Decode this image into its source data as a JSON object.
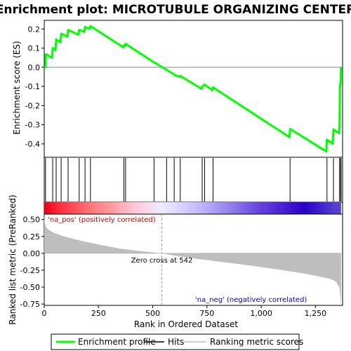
{
  "chart_data": {
    "type": "line",
    "title": "Enrichment plot: MICROTUBULE ORGANIZING CENTER",
    "es_panel": {
      "ylabel": "Enrichment score (ES)",
      "ylim": [
        -0.47,
        0.245
      ],
      "yticks": [
        0.2,
        0.1,
        0.0,
        -0.1,
        -0.2,
        -0.3,
        -0.4
      ],
      "ytick_labels": [
        "0.2",
        "0.1",
        "0.0",
        "-0.1",
        "-0.2",
        "-0.3",
        "-0.4"
      ],
      "series": [
        {
          "name": "Enrichment profile",
          "color": "#00ff00",
          "x": [
            0,
            6,
            7,
            36,
            39,
            52,
            55,
            75,
            78,
            107,
            110,
            158,
            161,
            185,
            188,
            210,
            213,
            364,
            367,
            372,
            375,
            500,
            596,
            599,
            624,
            627,
            725,
            728,
            736,
            739,
            775,
            778,
            1130,
            1133,
            1300,
            1303,
            1330,
            1333,
            1358,
            1361,
            1363,
            1366,
            1368
          ],
          "y": [
            0.0,
            0.0,
            0.068,
            0.05,
            0.1,
            0.09,
            0.145,
            0.13,
            0.175,
            0.16,
            0.195,
            0.17,
            0.195,
            0.185,
            0.21,
            0.2,
            0.215,
            0.105,
            0.115,
            0.11,
            0.122,
            0.03,
            -0.035,
            -0.04,
            -0.05,
            -0.045,
            -0.113,
            -0.1,
            -0.095,
            -0.09,
            -0.12,
            -0.105,
            -0.365,
            -0.322,
            -0.44,
            -0.378,
            -0.4,
            -0.325,
            -0.345,
            -0.31,
            -0.09,
            -0.09,
            0.0
          ]
        }
      ],
      "hits": [
        6,
        39,
        55,
        78,
        110,
        161,
        188,
        213,
        367,
        375,
        506,
        564,
        599,
        627,
        728,
        739,
        778,
        1133,
        1303,
        1333,
        1361,
        1366,
        1368
      ],
      "hits_color": "#000000"
    },
    "rank_panel": {
      "xlabel": "Rank in Ordered Dataset",
      "ylabel": "Ranked list metric (PreRanked)",
      "xlim": [
        0,
        1375
      ],
      "xticks": [
        0,
        250,
        500,
        750,
        1000,
        1250
      ],
      "xtick_labels": [
        "0",
        "250",
        "500",
        "750",
        "1,000",
        "1,250"
      ],
      "ylim": [
        -0.77,
        0.58
      ],
      "yticks": [
        0.5,
        0.25,
        0.0,
        -0.25,
        -0.5,
        -0.75
      ],
      "ytick_labels": [
        "0.50",
        "0.25",
        "0.00",
        "-0.25",
        "-0.50",
        "-0.75"
      ],
      "profile_x": [
        0,
        2,
        5,
        10,
        20,
        40,
        80,
        150,
        250,
        350,
        450,
        542,
        650,
        800,
        950,
        1100,
        1200,
        1280,
        1320,
        1345,
        1360,
        1368
      ],
      "profile_y": [
        0.58,
        0.47,
        0.43,
        0.38,
        0.35,
        0.31,
        0.26,
        0.2,
        0.13,
        0.07,
        0.03,
        0.0,
        -0.06,
        -0.12,
        -0.18,
        -0.25,
        -0.3,
        -0.35,
        -0.38,
        -0.42,
        -0.5,
        -0.75
      ],
      "fill_color": "#bebebe",
      "zero_cross_rank": 542,
      "annotations": {
        "zero_cross": "Zero cross at 542",
        "positive": "'na_pos' (positively correlated)",
        "negative": "'na_neg' (negatively correlated)"
      }
    },
    "color_bar": {
      "stops": [
        {
          "rank": 0,
          "color": "#e8001a"
        },
        {
          "rank": 80,
          "color": "#ff3344"
        },
        {
          "rank": 160,
          "color": "#ff5a63"
        },
        {
          "rank": 235,
          "color": "#ff7f85"
        },
        {
          "rank": 320,
          "color": "#ff9fa2"
        },
        {
          "rank": 420,
          "color": "#ffc8dc"
        },
        {
          "rank": 540,
          "color": "#f0eaff"
        },
        {
          "rank": 610,
          "color": "#ddd8ff"
        },
        {
          "rank": 700,
          "color": "#c8bdfa"
        },
        {
          "rank": 835,
          "color": "#9a88ee"
        },
        {
          "rank": 980,
          "color": "#6a48e0"
        },
        {
          "rank": 1200,
          "color": "#2a00c8"
        },
        {
          "rank": 1340,
          "color": "#5540d0"
        },
        {
          "rank": 1368,
          "color": "#5540d0"
        }
      ]
    },
    "legend": {
      "placement": "bottom",
      "items": [
        {
          "label": "Enrichment profile",
          "color": "#00ff00"
        },
        {
          "label": "Hits",
          "color": "#000000"
        },
        {
          "label": "Ranking metric scores",
          "color": "#bebebe"
        }
      ]
    }
  }
}
